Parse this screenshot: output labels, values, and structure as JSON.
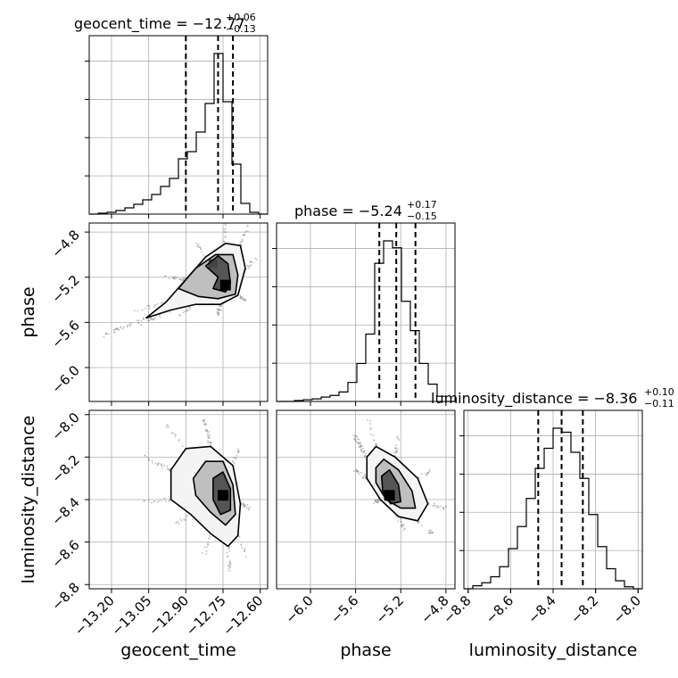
{
  "chart_data": {
    "type": "corner",
    "parameters": [
      "geocent_time",
      "phase",
      "luminosity_distance"
    ],
    "titles": [
      {
        "param": "geocent_time",
        "prefix": "geocent_time = ",
        "value": "−12.77",
        "upper": "+0.06",
        "lower": "−0.13"
      },
      {
        "param": "phase",
        "prefix": "phase = ",
        "value": "−5.24",
        "upper": "+0.17",
        "lower": "−0.15"
      },
      {
        "param": "luminosity_distance",
        "prefix": "luminosity_distance = ",
        "value": "−8.36",
        "upper": "+0.10",
        "lower": "−0.11"
      }
    ],
    "axes": {
      "geocent_time": {
        "range": [
          -13.29,
          -12.57
        ],
        "ticks": [
          -13.2,
          -13.05,
          -12.9,
          -12.75,
          -12.6
        ],
        "tick_labels": [
          "−13.20",
          "−13.05",
          "−12.90",
          "−12.75",
          "−12.60"
        ],
        "label": "geocent_time"
      },
      "phase": {
        "range": [
          -6.3,
          -4.72
        ],
        "ticks": [
          -6.0,
          -5.6,
          -5.2,
          -4.8
        ],
        "tick_labels": [
          "−6.0",
          "−5.6",
          "−5.2",
          "−4.8"
        ],
        "label": "phase"
      },
      "luminosity_distance": {
        "range": [
          -8.82,
          -7.98
        ],
        "ticks": [
          -8.8,
          -8.6,
          -8.4,
          -8.2,
          -8.0
        ],
        "tick_labels": [
          "−8.8",
          "−8.6",
          "−8.4",
          "−8.2",
          "−8.0"
        ],
        "label": "luminosity_distance"
      }
    },
    "histograms": [
      {
        "param": "geocent_time",
        "bin_edges": [
          -13.29,
          -13.254,
          -13.218,
          -13.182,
          -13.146,
          -13.11,
          -13.074,
          -13.038,
          -13.002,
          -12.966,
          -12.93,
          -12.894,
          -12.858,
          -12.822,
          -12.786,
          -12.75,
          -12.714,
          -12.678,
          -12.642,
          -12.606,
          -12.57
        ],
        "counts": [
          0,
          1,
          2,
          4,
          7,
          11,
          16,
          22,
          31,
          40,
          62,
          70,
          92,
          124,
          180,
          126,
          56,
          12,
          2,
          0
        ],
        "quantiles": [
          -12.9,
          -12.77,
          -12.71
        ]
      },
      {
        "param": "phase",
        "bin_edges": [
          -6.3,
          -6.221,
          -6.142,
          -6.063,
          -5.984,
          -5.905,
          -5.826,
          -5.747,
          -5.668,
          -5.589,
          -5.51,
          -5.431,
          -5.352,
          -5.273,
          -5.194,
          -5.115,
          -5.036,
          -4.957,
          -4.878,
          -4.799,
          -4.72
        ],
        "counts": [
          0,
          0,
          1,
          2,
          3,
          5,
          7,
          11,
          22,
          44,
          78,
          160,
          186,
          178,
          116,
          82,
          44,
          20,
          6,
          0
        ],
        "quantiles": [
          -5.39,
          -5.24,
          -5.07
        ]
      },
      {
        "param": "luminosity_distance",
        "bin_edges": [
          -8.82,
          -8.778,
          -8.736,
          -8.694,
          -8.652,
          -8.61,
          -8.568,
          -8.526,
          -8.484,
          -8.442,
          -8.4,
          -8.358,
          -8.316,
          -8.274,
          -8.232,
          -8.19,
          -8.148,
          -8.106,
          -8.064,
          -8.022,
          -7.98
        ],
        "counts": [
          0,
          3,
          6,
          12,
          22,
          40,
          62,
          90,
          120,
          140,
          160,
          156,
          136,
          110,
          74,
          42,
          20,
          8,
          2,
          0
        ],
        "quantiles": [
          -8.47,
          -8.36,
          -8.26
        ]
      }
    ],
    "joint_panels": [
      {
        "x": "geocent_time",
        "y": "phase",
        "peak": {
          "x": -12.74,
          "y": -5.27
        },
        "secondary_peak": {
          "x": -12.79,
          "y": -5.08
        },
        "contours": [
          [
            [
              -13.06,
              -5.56
            ],
            [
              -12.98,
              -5.42
            ],
            [
              -12.9,
              -5.22
            ],
            [
              -12.82,
              -5.02
            ],
            [
              -12.74,
              -4.9
            ],
            [
              -12.68,
              -4.92
            ],
            [
              -12.66,
              -5.12
            ],
            [
              -12.69,
              -5.36
            ],
            [
              -12.76,
              -5.44
            ],
            [
              -12.86,
              -5.44
            ],
            [
              -12.96,
              -5.49
            ],
            [
              -13.06,
              -5.56
            ]
          ],
          [
            [
              -12.93,
              -5.3
            ],
            [
              -12.86,
              -5.12
            ],
            [
              -12.78,
              -5.0
            ],
            [
              -12.71,
              -5.0
            ],
            [
              -12.69,
              -5.18
            ],
            [
              -12.7,
              -5.35
            ],
            [
              -12.77,
              -5.39
            ],
            [
              -12.85,
              -5.37
            ],
            [
              -12.93,
              -5.3
            ]
          ],
          [
            [
              -12.82,
              -5.1
            ],
            [
              -12.77,
              -5.01
            ],
            [
              -12.73,
              -5.08
            ],
            [
              -12.72,
              -5.25
            ],
            [
              -12.74,
              -5.33
            ],
            [
              -12.79,
              -5.3
            ],
            [
              -12.77,
              -5.2
            ],
            [
              -12.82,
              -5.1
            ]
          ]
        ]
      },
      {
        "x": "geocent_time",
        "y": "luminosity_distance",
        "peak": {
          "x": -12.75,
          "y": -8.38
        },
        "contours": [
          [
            [
              -12.96,
              -8.26
            ],
            [
              -12.9,
              -8.16
            ],
            [
              -12.8,
              -8.15
            ],
            [
              -12.71,
              -8.24
            ],
            [
              -12.68,
              -8.42
            ],
            [
              -12.69,
              -8.57
            ],
            [
              -12.73,
              -8.62
            ],
            [
              -12.8,
              -8.56
            ],
            [
              -12.88,
              -8.47
            ],
            [
              -12.96,
              -8.4
            ],
            [
              -12.96,
              -8.26
            ]
          ],
          [
            [
              -12.87,
              -8.3
            ],
            [
              -12.82,
              -8.22
            ],
            [
              -12.75,
              -8.22
            ],
            [
              -12.71,
              -8.33
            ],
            [
              -12.7,
              -8.47
            ],
            [
              -12.74,
              -8.52
            ],
            [
              -12.8,
              -8.46
            ],
            [
              -12.86,
              -8.38
            ],
            [
              -12.87,
              -8.3
            ]
          ],
          [
            [
              -12.79,
              -8.3
            ],
            [
              -12.75,
              -8.27
            ],
            [
              -12.72,
              -8.35
            ],
            [
              -12.72,
              -8.45
            ],
            [
              -12.76,
              -8.47
            ],
            [
              -12.79,
              -8.4
            ],
            [
              -12.79,
              -8.3
            ]
          ]
        ]
      },
      {
        "x": "phase",
        "y": "luminosity_distance",
        "peak": {
          "x": -5.3,
          "y": -8.38
        },
        "contours": [
          [
            [
              -5.5,
              -8.2
            ],
            [
              -5.42,
              -8.15
            ],
            [
              -5.25,
              -8.2
            ],
            [
              -5.05,
              -8.3
            ],
            [
              -4.96,
              -8.42
            ],
            [
              -5.05,
              -8.5
            ],
            [
              -5.22,
              -8.48
            ],
            [
              -5.38,
              -8.4
            ],
            [
              -5.5,
              -8.3
            ],
            [
              -5.5,
              -8.2
            ]
          ],
          [
            [
              -5.42,
              -8.25
            ],
            [
              -5.35,
              -8.21
            ],
            [
              -5.22,
              -8.26
            ],
            [
              -5.1,
              -8.36
            ],
            [
              -5.07,
              -8.44
            ],
            [
              -5.2,
              -8.44
            ],
            [
              -5.33,
              -8.4
            ],
            [
              -5.42,
              -8.32
            ],
            [
              -5.42,
              -8.25
            ]
          ],
          [
            [
              -5.37,
              -8.29
            ],
            [
              -5.3,
              -8.26
            ],
            [
              -5.22,
              -8.33
            ],
            [
              -5.2,
              -8.41
            ],
            [
              -5.29,
              -8.42
            ],
            [
              -5.36,
              -8.36
            ],
            [
              -5.37,
              -8.29
            ]
          ]
        ]
      }
    ],
    "grid": true
  }
}
